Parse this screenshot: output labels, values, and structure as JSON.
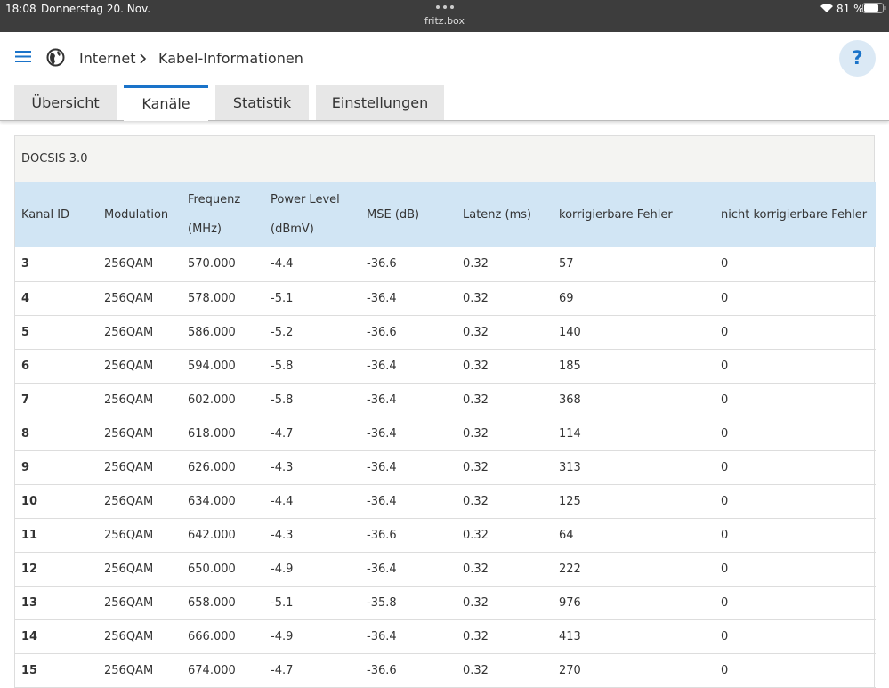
{
  "status_bar": {
    "time": "18:08",
    "date": "Donnerstag 20. Nov.",
    "url": "fritz.box",
    "battery": "81 %"
  },
  "header": {
    "breadcrumb": [
      "Internet",
      "Kabel-Informationen"
    ],
    "help": "?"
  },
  "tabs": {
    "items": [
      "Übersicht",
      "Kanäle",
      "Statistik",
      "Einstellungen"
    ],
    "active": 1
  },
  "table": {
    "section": "DOCSIS 3.0",
    "columns": [
      "Kanal ID",
      "Modulation",
      "Frequenz (MHz)",
      "Power Level (dBmV)",
      "MSE (dB)",
      "Latenz (ms)",
      "korrigierbare Fehler",
      "nicht korrigierbare Fehler"
    ],
    "rows": [
      [
        "3",
        "256QAM",
        "570.000",
        "-4.4",
        "-36.6",
        "0.32",
        "57",
        "0"
      ],
      [
        "4",
        "256QAM",
        "578.000",
        "-5.1",
        "-36.4",
        "0.32",
        "69",
        "0"
      ],
      [
        "5",
        "256QAM",
        "586.000",
        "-5.2",
        "-36.6",
        "0.32",
        "140",
        "0"
      ],
      [
        "6",
        "256QAM",
        "594.000",
        "-5.8",
        "-36.4",
        "0.32",
        "185",
        "0"
      ],
      [
        "7",
        "256QAM",
        "602.000",
        "-5.8",
        "-36.4",
        "0.32",
        "368",
        "0"
      ],
      [
        "8",
        "256QAM",
        "618.000",
        "-4.7",
        "-36.4",
        "0.32",
        "114",
        "0"
      ],
      [
        "9",
        "256QAM",
        "626.000",
        "-4.3",
        "-36.4",
        "0.32",
        "313",
        "0"
      ],
      [
        "10",
        "256QAM",
        "634.000",
        "-4.4",
        "-36.4",
        "0.32",
        "125",
        "0"
      ],
      [
        "11",
        "256QAM",
        "642.000",
        "-4.3",
        "-36.6",
        "0.32",
        "64",
        "0"
      ],
      [
        "12",
        "256QAM",
        "650.000",
        "-4.9",
        "-36.4",
        "0.32",
        "222",
        "0"
      ],
      [
        "13",
        "256QAM",
        "658.000",
        "-5.1",
        "-35.8",
        "0.32",
        "976",
        "0"
      ],
      [
        "14",
        "256QAM",
        "666.000",
        "-4.9",
        "-36.4",
        "0.32",
        "413",
        "0"
      ],
      [
        "15",
        "256QAM",
        "674.000",
        "-4.7",
        "-36.6",
        "0.32",
        "270",
        "0"
      ]
    ]
  }
}
